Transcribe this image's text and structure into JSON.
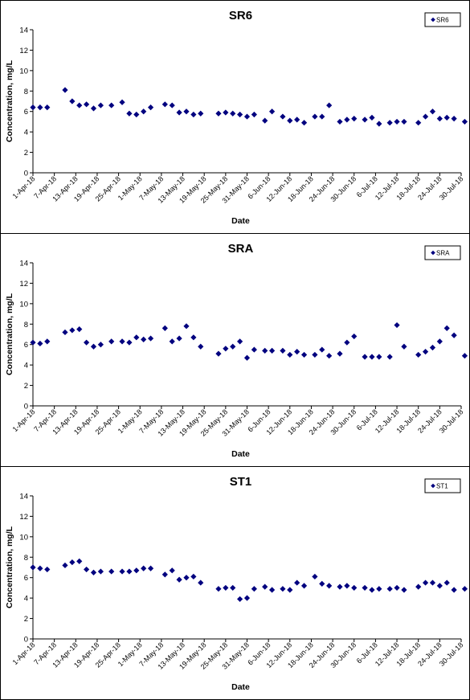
{
  "chart_data": [
    {
      "type": "scatter",
      "title": "SR6",
      "xlabel": "Date",
      "ylabel": "Concentration, mg/L",
      "ylim": [
        0,
        14
      ],
      "yticks": [
        0,
        2,
        4,
        6,
        8,
        10,
        12,
        14
      ],
      "xlim": [
        "2018-04-01",
        "2018-07-30"
      ],
      "xtick_labels": [
        "1-Apr-18",
        "7-Apr-18",
        "13-Apr-18",
        "19-Apr-18",
        "25-Apr-18",
        "1-May-18",
        "7-May-18",
        "13-May-18",
        "19-May-18",
        "25-May-18",
        "31-May-18",
        "6-Jun-18",
        "12-Jun-18",
        "18-Jun-18",
        "24-Jun-18",
        "30-Jun-18",
        "6-Jul-18",
        "12-Jul-18",
        "18-Jul-18",
        "24-Jul-18",
        "30-Jul-18"
      ],
      "grid": false,
      "legend_position": "top-right",
      "marker_color": "#00007f",
      "series": [
        {
          "name": "SR6",
          "x": [
            "2018-04-01",
            "2018-04-03",
            "2018-04-05",
            "2018-04-10",
            "2018-04-12",
            "2018-04-14",
            "2018-04-16",
            "2018-04-18",
            "2018-04-20",
            "2018-04-23",
            "2018-04-26",
            "2018-04-28",
            "2018-04-30",
            "2018-05-02",
            "2018-05-04",
            "2018-05-08",
            "2018-05-10",
            "2018-05-12",
            "2018-05-14",
            "2018-05-16",
            "2018-05-18",
            "2018-05-23",
            "2018-05-25",
            "2018-05-27",
            "2018-05-29",
            "2018-05-31",
            "2018-06-02",
            "2018-06-05",
            "2018-06-07",
            "2018-06-10",
            "2018-06-12",
            "2018-06-14",
            "2018-06-16",
            "2018-06-19",
            "2018-06-21",
            "2018-06-23",
            "2018-06-26",
            "2018-06-28",
            "2018-06-30",
            "2018-07-03",
            "2018-07-05",
            "2018-07-07",
            "2018-07-10",
            "2018-07-12",
            "2018-07-14",
            "2018-07-18",
            "2018-07-20",
            "2018-07-22",
            "2018-07-24",
            "2018-07-26",
            "2018-07-28",
            "2018-07-31"
          ],
          "y": [
            6.4,
            6.4,
            6.4,
            8.1,
            7.0,
            6.6,
            6.7,
            6.3,
            6.6,
            6.6,
            6.9,
            5.8,
            5.7,
            6.0,
            6.4,
            6.7,
            6.6,
            5.9,
            6.0,
            5.7,
            5.8,
            5.8,
            5.9,
            5.8,
            5.7,
            5.5,
            5.7,
            5.1,
            6.0,
            5.5,
            5.1,
            5.2,
            4.9,
            5.5,
            5.5,
            6.6,
            5.0,
            5.2,
            5.3,
            5.2,
            5.4,
            4.8,
            4.9,
            5.0,
            5.0,
            4.9,
            5.5,
            6.0,
            5.3,
            5.4,
            5.3,
            5.0
          ]
        }
      ]
    },
    {
      "type": "scatter",
      "title": "SRA",
      "xlabel": "Date",
      "ylabel": "Concentration, mg/L",
      "ylim": [
        0,
        14
      ],
      "yticks": [
        0,
        2,
        4,
        6,
        8,
        10,
        12,
        14
      ],
      "xlim": [
        "2018-04-01",
        "2018-07-30"
      ],
      "xtick_labels": [
        "1-Apr-18",
        "7-Apr-18",
        "13-Apr-18",
        "19-Apr-18",
        "25-Apr-18",
        "1-May-18",
        "7-May-18",
        "13-May-18",
        "19-May-18",
        "25-May-18",
        "31-May-18",
        "6-Jun-18",
        "12-Jun-18",
        "18-Jun-18",
        "24-Jun-18",
        "30-Jun-18",
        "6-Jul-18",
        "12-Jul-18",
        "18-Jul-18",
        "24-Jul-18",
        "30-Jul-18"
      ],
      "grid": false,
      "legend_position": "top-right",
      "marker_color": "#00007f",
      "series": [
        {
          "name": "SRA",
          "x": [
            "2018-04-01",
            "2018-04-03",
            "2018-04-05",
            "2018-04-10",
            "2018-04-12",
            "2018-04-14",
            "2018-04-16",
            "2018-04-18",
            "2018-04-20",
            "2018-04-23",
            "2018-04-26",
            "2018-04-28",
            "2018-04-30",
            "2018-05-02",
            "2018-05-04",
            "2018-05-08",
            "2018-05-10",
            "2018-05-12",
            "2018-05-14",
            "2018-05-16",
            "2018-05-18",
            "2018-05-23",
            "2018-05-25",
            "2018-05-27",
            "2018-05-29",
            "2018-05-31",
            "2018-06-02",
            "2018-06-05",
            "2018-06-07",
            "2018-06-10",
            "2018-06-12",
            "2018-06-14",
            "2018-06-16",
            "2018-06-19",
            "2018-06-21",
            "2018-06-23",
            "2018-06-26",
            "2018-06-28",
            "2018-06-30",
            "2018-07-03",
            "2018-07-05",
            "2018-07-07",
            "2018-07-10",
            "2018-07-12",
            "2018-07-14",
            "2018-07-18",
            "2018-07-20",
            "2018-07-22",
            "2018-07-24",
            "2018-07-26",
            "2018-07-28",
            "2018-07-31"
          ],
          "y": [
            6.2,
            6.1,
            6.3,
            7.2,
            7.4,
            7.5,
            6.2,
            5.8,
            6.0,
            6.3,
            6.3,
            6.2,
            6.7,
            6.5,
            6.6,
            7.6,
            6.3,
            6.6,
            7.8,
            6.7,
            5.8,
            5.1,
            5.6,
            5.8,
            6.3,
            4.7,
            5.5,
            5.4,
            5.4,
            5.4,
            5.0,
            5.3,
            5.0,
            5.0,
            5.5,
            4.9,
            5.1,
            6.2,
            6.8,
            4.8,
            4.8,
            4.8,
            4.8,
            7.9,
            5.8,
            5.0,
            5.3,
            5.7,
            6.3,
            7.6,
            6.9,
            4.9
          ]
        }
      ]
    },
    {
      "type": "scatter",
      "title": "ST1",
      "xlabel": "Date",
      "ylabel": "Concentration, mg/L",
      "ylim": [
        0,
        14
      ],
      "yticks": [
        0,
        2,
        4,
        6,
        8,
        10,
        12,
        14
      ],
      "xlim": [
        "2018-04-01",
        "2018-07-30"
      ],
      "xtick_labels": [
        "1-Apr-18",
        "7-Apr-18",
        "13-Apr-18",
        "19-Apr-18",
        "25-Apr-18",
        "1-May-18",
        "7-May-18",
        "13-May-18",
        "19-May-18",
        "25-May-18",
        "31-May-18",
        "6-Jun-18",
        "12-Jun-18",
        "18-Jun-18",
        "24-Jun-18",
        "30-Jun-18",
        "6-Jul-18",
        "12-Jul-18",
        "18-Jul-18",
        "24-Jul-18",
        "30-Jul-18"
      ],
      "grid": false,
      "legend_position": "top-right",
      "marker_color": "#00007f",
      "series": [
        {
          "name": "ST1",
          "x": [
            "2018-04-01",
            "2018-04-03",
            "2018-04-05",
            "2018-04-10",
            "2018-04-12",
            "2018-04-14",
            "2018-04-16",
            "2018-04-18",
            "2018-04-20",
            "2018-04-23",
            "2018-04-26",
            "2018-04-28",
            "2018-04-30",
            "2018-05-02",
            "2018-05-04",
            "2018-05-08",
            "2018-05-10",
            "2018-05-12",
            "2018-05-14",
            "2018-05-16",
            "2018-05-18",
            "2018-05-23",
            "2018-05-25",
            "2018-05-27",
            "2018-05-29",
            "2018-05-31",
            "2018-06-02",
            "2018-06-05",
            "2018-06-07",
            "2018-06-10",
            "2018-06-12",
            "2018-06-14",
            "2018-06-16",
            "2018-06-19",
            "2018-06-21",
            "2018-06-23",
            "2018-06-26",
            "2018-06-28",
            "2018-06-30",
            "2018-07-03",
            "2018-07-05",
            "2018-07-07",
            "2018-07-10",
            "2018-07-12",
            "2018-07-14",
            "2018-07-18",
            "2018-07-20",
            "2018-07-22",
            "2018-07-24",
            "2018-07-26",
            "2018-07-28",
            "2018-07-31"
          ],
          "y": [
            7.0,
            6.9,
            6.8,
            7.2,
            7.5,
            7.6,
            6.8,
            6.5,
            6.6,
            6.6,
            6.6,
            6.6,
            6.7,
            6.9,
            6.9,
            6.3,
            6.7,
            5.8,
            6.0,
            6.1,
            5.5,
            4.9,
            5.0,
            5.0,
            3.9,
            4.0,
            4.9,
            5.1,
            4.8,
            4.9,
            4.8,
            5.5,
            5.2,
            6.1,
            5.4,
            5.2,
            5.1,
            5.2,
            5.0,
            5.0,
            4.8,
            4.9,
            4.9,
            5.0,
            4.8,
            5.1,
            5.5,
            5.5,
            5.2,
            5.5,
            4.8,
            4.9
          ]
        }
      ]
    }
  ]
}
